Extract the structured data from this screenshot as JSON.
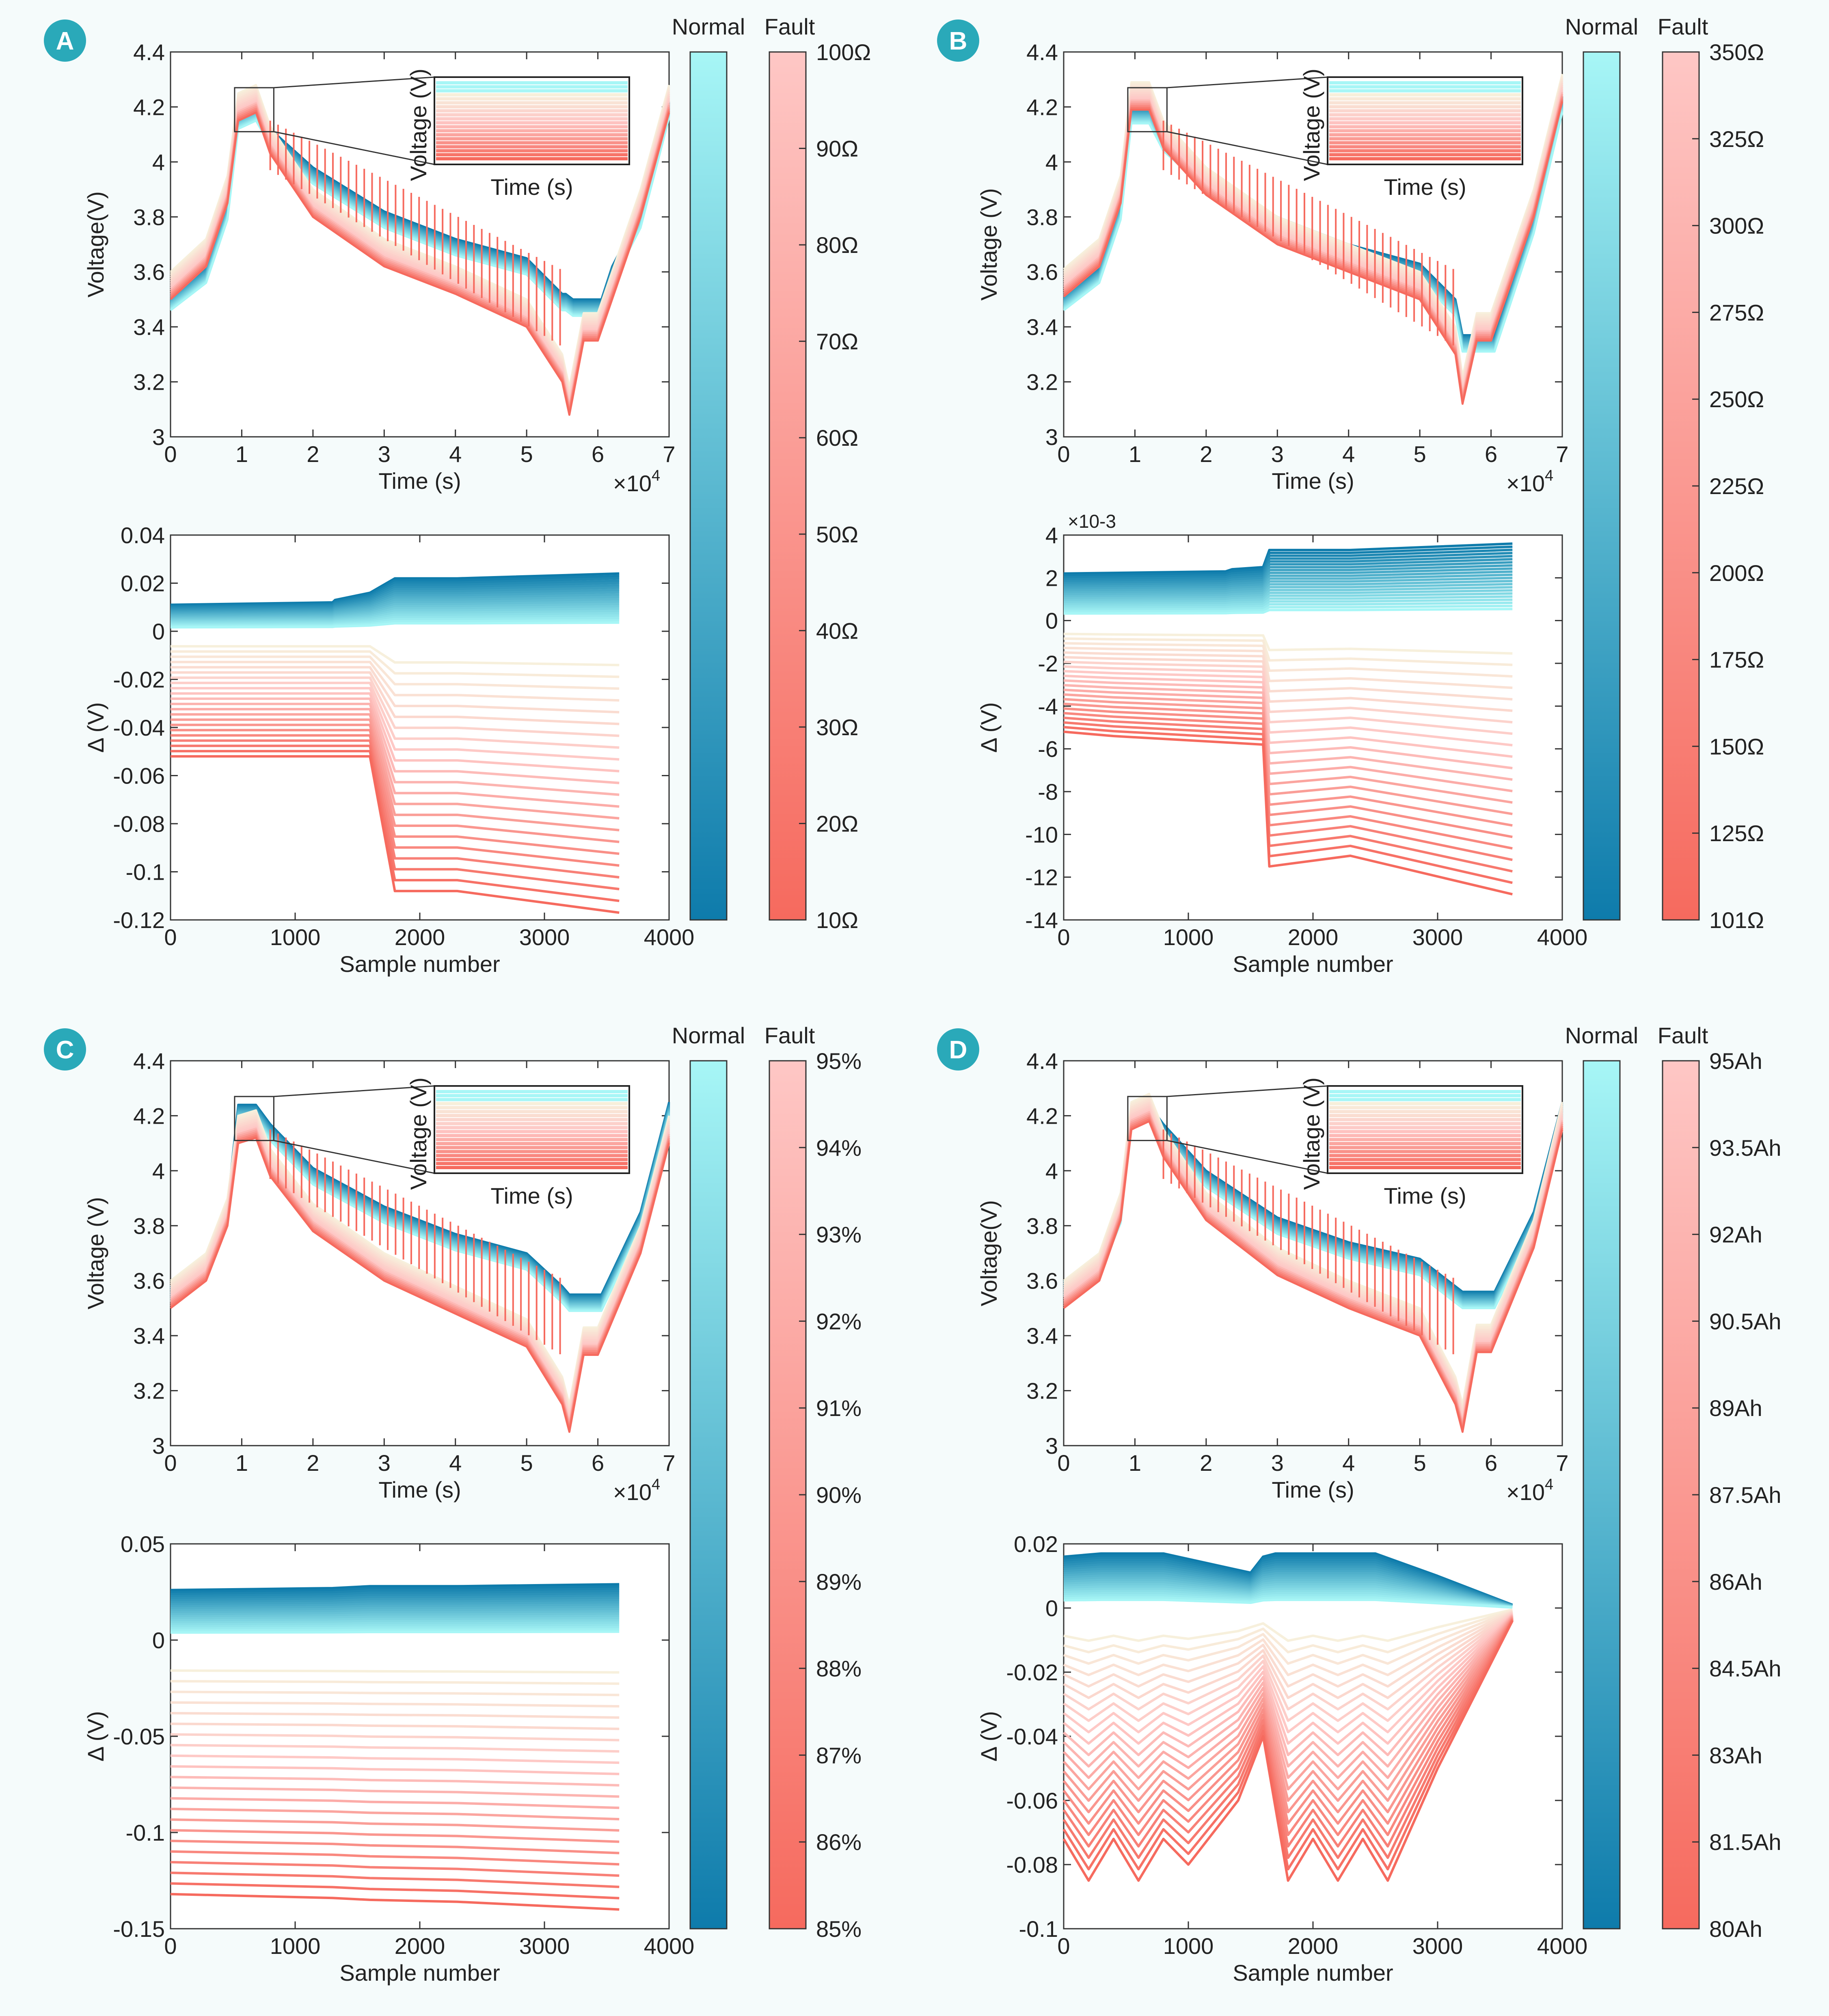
{
  "colors": {
    "background": "#f5fbfb",
    "normal_low": "#0e7bab",
    "normal_high": "#a7f6f6",
    "fault_low": "#f66a5e",
    "fault_high": "#fec7c5",
    "fault_mid": "#f7f0dc"
  },
  "shared_labels": {
    "voltage_ylabel": "Voltage(V)",
    "delta_ylabel": "Δ (V)",
    "time_xlabel": "Time (s)",
    "sample_xlabel": "Sample number",
    "time_multiplier_base": "×10",
    "time_multiplier_exp": "4",
    "inset_ylabel": "Voltage (V)",
    "inset_xlabel": "Time (s)",
    "colorbar_normal": "Normal",
    "colorbar_fault": "Fault"
  },
  "panels": [
    {
      "letter": "A",
      "voltage_ticks": [
        "4.4",
        "4.2",
        "4",
        "3.8",
        "3.6",
        "3.4",
        "3.2",
        "3"
      ],
      "time_ticks": [
        "0",
        "1",
        "2",
        "3",
        "4",
        "5",
        "6",
        "7"
      ],
      "delta_ticks": [
        "0.04",
        "0.02",
        "0",
        "-0.02",
        "-0.04",
        "-0.06",
        "-0.08",
        "-0.1",
        "-0.12"
      ],
      "delta_multiplier": "",
      "sample_ticks": [
        "0",
        "1000",
        "2000",
        "3000",
        "4000"
      ],
      "fault_ticks": [
        "100Ω",
        "90Ω",
        "80Ω",
        "70Ω",
        "60Ω",
        "50Ω",
        "40Ω",
        "30Ω",
        "20Ω",
        "10Ω"
      ]
    },
    {
      "letter": "B",
      "voltage_ticks": [
        "4.4",
        "4.2",
        "4",
        "3.8",
        "3.6",
        "3.4",
        "3.2",
        "3"
      ],
      "time_ticks": [
        "0",
        "1",
        "2",
        "3",
        "4",
        "5",
        "6",
        "7"
      ],
      "delta_ticks": [
        "4",
        "2",
        "0",
        "-2",
        "-4",
        "-6",
        "-8",
        "-10",
        "-12",
        "-14"
      ],
      "delta_multiplier": "×10-3",
      "sample_ticks": [
        "0",
        "1000",
        "2000",
        "3000",
        "4000"
      ],
      "fault_ticks": [
        "350Ω",
        "325Ω",
        "300Ω",
        "275Ω",
        "250Ω",
        "225Ω",
        "200Ω",
        "175Ω",
        "150Ω",
        "125Ω",
        "101Ω"
      ]
    },
    {
      "letter": "C",
      "voltage_ticks": [
        "4.4",
        "4.2",
        "4",
        "3.8",
        "3.6",
        "3.4",
        "3.2",
        "3"
      ],
      "time_ticks": [
        "0",
        "1",
        "2",
        "3",
        "4",
        "5",
        "6",
        "7"
      ],
      "delta_ticks": [
        "0.05",
        "0",
        "-0.05",
        "-0.1",
        "-0.15"
      ],
      "delta_multiplier": "",
      "sample_ticks": [
        "0",
        "1000",
        "2000",
        "3000",
        "4000"
      ],
      "fault_ticks": [
        "95%",
        "94%",
        "93%",
        "92%",
        "91%",
        "90%",
        "89%",
        "88%",
        "87%",
        "86%",
        "85%"
      ]
    },
    {
      "letter": "D",
      "voltage_ticks": [
        "4.4",
        "4.2",
        "4",
        "3.8",
        "3.6",
        "3.4",
        "3.2",
        "3"
      ],
      "time_ticks": [
        "0",
        "1",
        "2",
        "3",
        "4",
        "5",
        "6",
        "7"
      ],
      "delta_ticks": [
        "0.02",
        "0",
        "-0.02",
        "-0.04",
        "-0.06",
        "-0.08",
        "-0.1"
      ],
      "delta_multiplier": "",
      "sample_ticks": [
        "0",
        "1000",
        "2000",
        "3000",
        "4000"
      ],
      "fault_ticks": [
        "95Ah",
        "93.5Ah",
        "92Ah",
        "90.5Ah",
        "89Ah",
        "87.5Ah",
        "86Ah",
        "84.5Ah",
        "83Ah",
        "81.5Ah",
        "80Ah"
      ]
    }
  ],
  "chart_data": [
    {
      "type": "line",
      "panel": "A",
      "chart": "voltage",
      "xlabel": "Time (s)",
      "ylabel": "Voltage(V)",
      "xlim": [
        0,
        70000
      ],
      "ylim": [
        3.0,
        4.4
      ],
      "series": [
        {
          "name": "Normal",
          "x": [
            0,
            5000,
            8000,
            9500,
            12000,
            14000,
            20000,
            30000,
            40000,
            50000,
            55000,
            55500,
            56500,
            58000,
            60500,
            62000,
            64000,
            66000,
            70000
          ],
          "y": [
            3.52,
            3.62,
            3.85,
            4.18,
            4.21,
            4.12,
            3.98,
            3.82,
            3.72,
            3.65,
            3.52,
            3.52,
            3.5,
            3.5,
            3.5,
            3.62,
            3.72,
            3.82,
            4.22
          ]
        },
        {
          "name": "Fault",
          "x": [
            0,
            5000,
            8000,
            9500,
            12000,
            14000,
            20000,
            30000,
            40000,
            50000,
            55000,
            56000,
            58000,
            60000,
            66000,
            70000
          ],
          "y": [
            3.5,
            3.62,
            3.85,
            4.15,
            4.18,
            4.03,
            3.8,
            3.62,
            3.52,
            3.4,
            3.2,
            3.08,
            3.35,
            3.35,
            3.8,
            4.18
          ]
        }
      ]
    },
    {
      "type": "line",
      "panel": "A",
      "chart": "residual",
      "xlabel": "Sample number",
      "ylabel": "Δ (V)",
      "xlim": [
        0,
        4000
      ],
      "ylim": [
        -0.12,
        0.04
      ],
      "series": [
        {
          "name": "Normal",
          "x": [
            0,
            1300,
            1320,
            1600,
            1800,
            2300,
            3600
          ],
          "y": [
            0.011,
            0.012,
            0.013,
            0.016,
            0.022,
            0.022,
            0.024
          ]
        },
        {
          "name": "Fault",
          "x": [
            0,
            400,
            1000,
            1600,
            1800,
            2300,
            3600
          ],
          "y": [
            -0.052,
            -0.052,
            -0.052,
            -0.052,
            -0.108,
            -0.108,
            -0.117
          ]
        }
      ]
    },
    {
      "type": "line",
      "panel": "B",
      "chart": "voltage",
      "xlabel": "Time (s)",
      "ylabel": "Voltage (V)",
      "xlim": [
        0,
        70000
      ],
      "ylim": [
        3.0,
        4.4
      ],
      "series": [
        {
          "name": "Normal",
          "x": [
            0,
            5000,
            8000,
            9500,
            12000,
            14000,
            20000,
            30000,
            40000,
            50000,
            55000,
            56000,
            58000,
            60500,
            66000,
            70000
          ],
          "y": [
            3.52,
            3.62,
            3.85,
            4.2,
            4.2,
            4.1,
            3.96,
            3.8,
            3.7,
            3.63,
            3.5,
            3.37,
            3.37,
            3.37,
            3.8,
            4.24
          ]
        },
        {
          "name": "Fault",
          "x": [
            0,
            5000,
            8000,
            9500,
            12000,
            14000,
            20000,
            30000,
            40000,
            50000,
            55000,
            56000,
            58000,
            60000,
            66000,
            70000
          ],
          "y": [
            3.51,
            3.62,
            3.85,
            4.19,
            4.19,
            4.05,
            3.88,
            3.7,
            3.6,
            3.5,
            3.3,
            3.12,
            3.35,
            3.35,
            3.8,
            4.22
          ]
        }
      ]
    },
    {
      "type": "line",
      "panel": "B",
      "chart": "residual",
      "xlabel": "Sample number",
      "ylabel": "Δ (V)",
      "xlim": [
        0,
        4000
      ],
      "ylim": [
        -14,
        4
      ],
      "series": [
        {
          "name": "Normal",
          "x": [
            0,
            1300,
            1350,
            1600,
            1650,
            2300,
            3600
          ],
          "y": [
            2.2,
            2.3,
            2.4,
            2.5,
            3.3,
            3.3,
            3.6
          ]
        },
        {
          "name": "Fault",
          "x": [
            0,
            400,
            1000,
            1600,
            1650,
            2300,
            3600
          ],
          "y": [
            -5.2,
            -5.4,
            -5.6,
            -5.8,
            -11.5,
            -11.0,
            -12.8
          ]
        }
      ]
    },
    {
      "type": "line",
      "panel": "C",
      "chart": "voltage",
      "xlabel": "Time (s)",
      "ylabel": "Voltage (V)",
      "xlim": [
        0,
        70000
      ],
      "ylim": [
        3.0,
        4.4
      ],
      "series": [
        {
          "name": "Normal",
          "x": [
            0,
            5000,
            8000,
            9500,
            12000,
            14000,
            20000,
            30000,
            40000,
            50000,
            55000,
            56000,
            58000,
            60500,
            66000,
            70000
          ],
          "y": [
            3.58,
            3.68,
            3.88,
            4.24,
            4.24,
            4.17,
            4.01,
            3.87,
            3.77,
            3.7,
            3.58,
            3.55,
            3.55,
            3.55,
            3.85,
            4.25
          ]
        },
        {
          "name": "Fault",
          "x": [
            0,
            5000,
            8000,
            9500,
            12000,
            14000,
            20000,
            30000,
            40000,
            50000,
            55000,
            56000,
            58000,
            60000,
            66000,
            70000
          ],
          "y": [
            3.5,
            3.6,
            3.8,
            4.1,
            4.12,
            3.98,
            3.78,
            3.6,
            3.48,
            3.36,
            3.15,
            3.05,
            3.33,
            3.33,
            3.7,
            4.1
          ]
        }
      ]
    },
    {
      "type": "line",
      "panel": "C",
      "chart": "residual",
      "xlabel": "Sample number",
      "ylabel": "Δ (V)",
      "xlim": [
        0,
        4000
      ],
      "ylim": [
        -0.15,
        0.05
      ],
      "series": [
        {
          "name": "Normal",
          "x": [
            0,
            1300,
            1600,
            2300,
            3600
          ],
          "y": [
            0.026,
            0.027,
            0.028,
            0.028,
            0.029
          ]
        },
        {
          "name": "Fault",
          "x": [
            0,
            1300,
            1600,
            2300,
            3600
          ],
          "y": [
            -0.132,
            -0.134,
            -0.135,
            -0.136,
            -0.14
          ]
        }
      ]
    },
    {
      "type": "line",
      "panel": "D",
      "chart": "voltage",
      "xlabel": "Time (s)",
      "ylabel": "Voltage(V)",
      "xlim": [
        0,
        70000
      ],
      "ylim": [
        3.0,
        4.4
      ],
      "series": [
        {
          "name": "Normal",
          "x": [
            0,
            5000,
            8000,
            9500,
            12000,
            14000,
            20000,
            30000,
            40000,
            50000,
            55000,
            56000,
            58000,
            60500,
            66000,
            70000
          ],
          "y": [
            3.6,
            3.68,
            3.87,
            4.24,
            4.24,
            4.17,
            4.0,
            3.83,
            3.74,
            3.68,
            3.58,
            3.56,
            3.56,
            3.56,
            3.85,
            4.25
          ]
        },
        {
          "name": "Fault",
          "x": [
            0,
            5000,
            8000,
            9500,
            12000,
            14000,
            20000,
            30000,
            40000,
            50000,
            55000,
            56000,
            58000,
            60000,
            66000,
            70000
          ],
          "y": [
            3.5,
            3.6,
            3.82,
            4.15,
            4.18,
            4.05,
            3.82,
            3.62,
            3.5,
            3.4,
            3.15,
            3.05,
            3.34,
            3.34,
            3.72,
            4.15
          ]
        }
      ]
    },
    {
      "type": "line",
      "panel": "D",
      "chart": "residual",
      "xlabel": "Sample number",
      "ylabel": "Δ (V)",
      "xlim": [
        0,
        4000
      ],
      "ylim": [
        -0.1,
        0.02
      ],
      "series": [
        {
          "name": "Normal",
          "x": [
            0,
            300,
            800,
            1500,
            1600,
            1700,
            2200,
            2500,
            3000,
            3600
          ],
          "y": [
            0.016,
            0.017,
            0.017,
            0.011,
            0.016,
            0.017,
            0.017,
            0.017,
            0.01,
            0.001
          ]
        },
        {
          "name": "Fault",
          "x": [
            0,
            200,
            400,
            600,
            800,
            1000,
            1400,
            1600,
            1800,
            2000,
            2200,
            2400,
            2600,
            3000,
            3600
          ],
          "y": [
            -0.072,
            -0.085,
            -0.072,
            -0.085,
            -0.072,
            -0.08,
            -0.06,
            -0.04,
            -0.085,
            -0.072,
            -0.085,
            -0.072,
            -0.085,
            -0.05,
            -0.004
          ]
        }
      ]
    }
  ]
}
